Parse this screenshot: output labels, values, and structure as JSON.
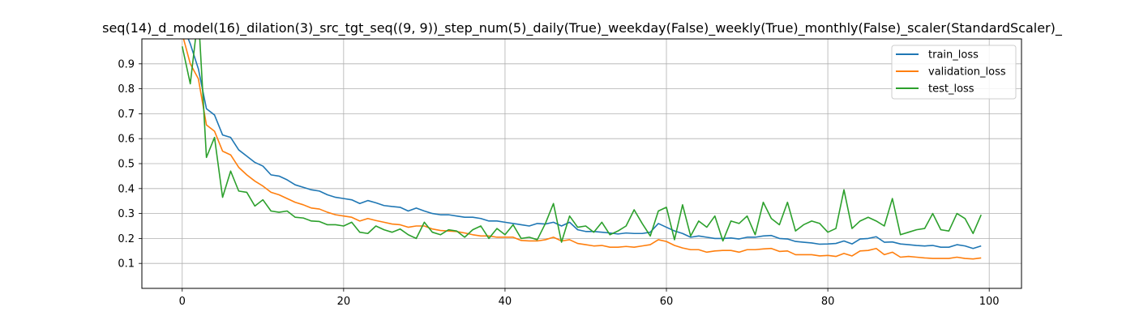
{
  "chart_data": {
    "type": "line",
    "title": "seq(14)_d_model(16)_dilation(3)_src_tgt_seq((9, 9))_step_num(5)_daily(True)_weekday(False)_weekly(True)_monthly(False)_scaler(StandardScaler)_",
    "xlabel": "",
    "ylabel": "",
    "xlim": [
      -5,
      104
    ],
    "ylim": [
      0.0,
      1.0
    ],
    "x_ticks": [
      0,
      20,
      40,
      60,
      80,
      100
    ],
    "y_ticks": [
      0.1,
      0.2,
      0.3,
      0.4,
      0.5,
      0.6,
      0.7,
      0.8,
      0.9
    ],
    "grid": true,
    "legend_position": "top-right",
    "series": [
      {
        "name": "train_loss",
        "color": "#1f77b4",
        "values": [
          1.06,
          0.98,
          0.88,
          0.72,
          0.695,
          0.615,
          0.605,
          0.555,
          0.53,
          0.505,
          0.49,
          0.455,
          0.45,
          0.435,
          0.415,
          0.405,
          0.395,
          0.39,
          0.375,
          0.365,
          0.36,
          0.355,
          0.34,
          0.352,
          0.343,
          0.332,
          0.328,
          0.325,
          0.31,
          0.322,
          0.31,
          0.3,
          0.295,
          0.295,
          0.29,
          0.285,
          0.285,
          0.28,
          0.27,
          0.27,
          0.265,
          0.26,
          0.255,
          0.25,
          0.26,
          0.258,
          0.265,
          0.25,
          0.265,
          0.235,
          0.228,
          0.228,
          0.225,
          0.222,
          0.218,
          0.222,
          0.22,
          0.22,
          0.225,
          0.26,
          0.245,
          0.23,
          0.22,
          0.205,
          0.21,
          0.205,
          0.2,
          0.2,
          0.202,
          0.198,
          0.205,
          0.205,
          0.21,
          0.212,
          0.2,
          0.198,
          0.188,
          0.185,
          0.182,
          0.177,
          0.178,
          0.18,
          0.19,
          0.178,
          0.198,
          0.2,
          0.207,
          0.185,
          0.186,
          0.178,
          0.175,
          0.172,
          0.17,
          0.172,
          0.165,
          0.165,
          0.175,
          0.17,
          0.16,
          0.17
        ]
      },
      {
        "name": "validation_loss",
        "color": "#ff7f0e",
        "values": [
          1.02,
          0.9,
          0.84,
          0.655,
          0.63,
          0.55,
          0.535,
          0.485,
          0.455,
          0.43,
          0.41,
          0.385,
          0.375,
          0.36,
          0.345,
          0.335,
          0.322,
          0.318,
          0.305,
          0.295,
          0.29,
          0.285,
          0.27,
          0.28,
          0.272,
          0.265,
          0.258,
          0.255,
          0.245,
          0.25,
          0.25,
          0.238,
          0.232,
          0.23,
          0.228,
          0.222,
          0.215,
          0.21,
          0.21,
          0.205,
          0.205,
          0.205,
          0.192,
          0.19,
          0.19,
          0.195,
          0.205,
          0.19,
          0.195,
          0.18,
          0.175,
          0.17,
          0.172,
          0.165,
          0.165,
          0.168,
          0.165,
          0.17,
          0.175,
          0.195,
          0.188,
          0.172,
          0.162,
          0.155,
          0.155,
          0.145,
          0.15,
          0.152,
          0.152,
          0.145,
          0.155,
          0.155,
          0.158,
          0.16,
          0.148,
          0.15,
          0.135,
          0.135,
          0.135,
          0.13,
          0.132,
          0.128,
          0.14,
          0.13,
          0.15,
          0.152,
          0.16,
          0.135,
          0.145,
          0.125,
          0.128,
          0.125,
          0.122,
          0.12,
          0.12,
          0.12,
          0.125,
          0.12,
          0.118,
          0.122
        ]
      },
      {
        "name": "test_loss",
        "color": "#2ca02c",
        "values": [
          0.97,
          0.82,
          1.1,
          0.525,
          0.605,
          0.365,
          0.47,
          0.39,
          0.385,
          0.33,
          0.355,
          0.31,
          0.305,
          0.31,
          0.285,
          0.282,
          0.27,
          0.268,
          0.255,
          0.255,
          0.25,
          0.265,
          0.225,
          0.22,
          0.25,
          0.235,
          0.225,
          0.238,
          0.215,
          0.2,
          0.265,
          0.225,
          0.215,
          0.235,
          0.23,
          0.205,
          0.235,
          0.25,
          0.2,
          0.24,
          0.215,
          0.255,
          0.2,
          0.205,
          0.195,
          0.26,
          0.34,
          0.185,
          0.29,
          0.245,
          0.25,
          0.225,
          0.265,
          0.215,
          0.23,
          0.25,
          0.315,
          0.26,
          0.21,
          0.31,
          0.325,
          0.195,
          0.335,
          0.21,
          0.27,
          0.245,
          0.29,
          0.19,
          0.27,
          0.26,
          0.29,
          0.215,
          0.345,
          0.28,
          0.255,
          0.345,
          0.23,
          0.255,
          0.27,
          0.26,
          0.225,
          0.24,
          0.395,
          0.24,
          0.27,
          0.285,
          0.27,
          0.25,
          0.36,
          0.215,
          0.225,
          0.235,
          0.24,
          0.3,
          0.235,
          0.23,
          0.3,
          0.28,
          0.22,
          0.295
        ]
      }
    ]
  }
}
